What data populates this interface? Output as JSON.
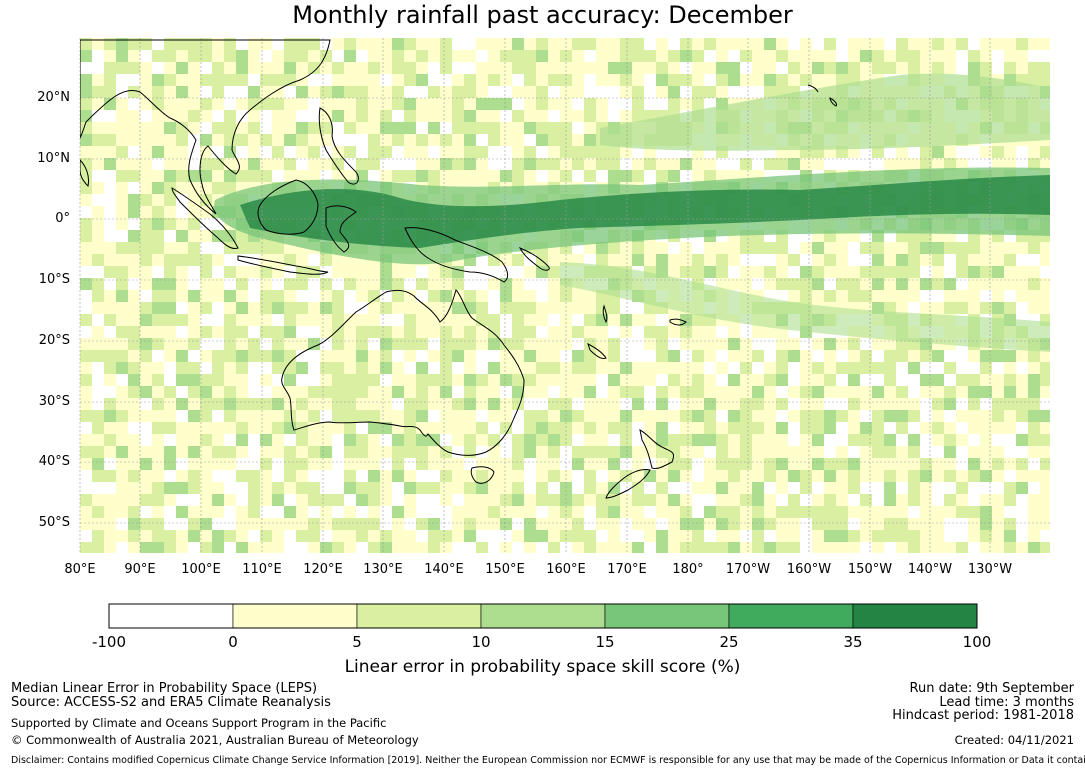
{
  "title": "Monthly rainfall past accuracy: December",
  "map": {
    "lat_labels": [
      "20°N",
      "10°N",
      "0°",
      "10°S",
      "20°S",
      "30°S",
      "40°S",
      "50°S"
    ],
    "lon_labels": [
      "80°E",
      "90°E",
      "100°E",
      "110°E",
      "120°E",
      "130°E",
      "140°E",
      "150°E",
      "160°E",
      "170°E",
      "180°",
      "170°W",
      "160°W",
      "150°W",
      "140°W",
      "130°W"
    ],
    "colors": {
      "land_outline": "#000000",
      "gridline": "#9a9a9a",
      "bins": [
        "#ffffff",
        "#ffffcc",
        "#d9f0a3",
        "#addd8e",
        "#78c679",
        "#41ab5d",
        "#238443"
      ]
    }
  },
  "colorbar": {
    "ticks": [
      "-100",
      "0",
      "5",
      "10",
      "15",
      "25",
      "35",
      "100"
    ],
    "label": "Linear error in probability space skill score (%)"
  },
  "footer": {
    "left_line1": "Median Linear Error in Probability Space (LEPS)",
    "left_line2": "Source: ACCESS-S2 and ERA5 Climate Reanalysis",
    "left_line3": "Supported by Climate and Oceans Support Program in the Pacific",
    "left_line4": "© Commonwealth of Australia 2021, Australian Bureau of Meteorology",
    "right_line1": "Run date: 9th September",
    "right_line2": "Lead time: 3 months",
    "right_line3": "Hindcast period: 1981-2018",
    "right_line4": "Created: 04/11/2021",
    "disclaimer": "Disclaimer: Contains modified Copernicus Climate Change Service Information [2019]. Neither the European Commission nor ECMWF is responsible for any use that may be made of the Copernicus Information or Data it contains."
  }
}
